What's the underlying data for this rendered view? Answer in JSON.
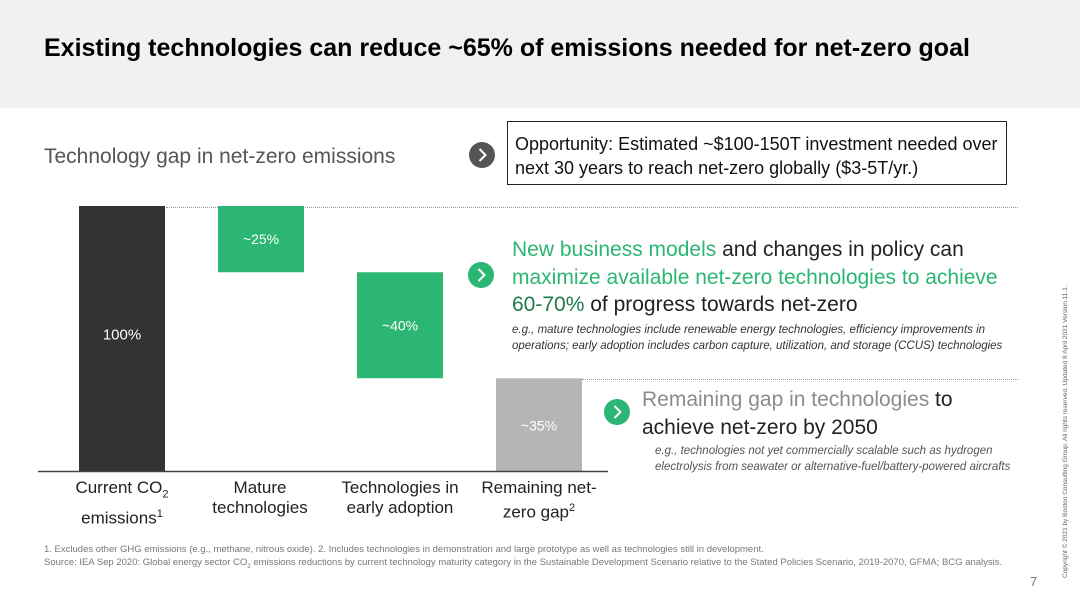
{
  "header": {
    "title": "Existing technologies can reduce ~65% of emissions needed for net-zero goal"
  },
  "subtitle": "Technology gap in net-zero emissions",
  "opportunity": {
    "label": "Opportunity",
    "text_a": ": Estimated ",
    "highlight": "~$100-150T",
    "text_b": " investment needed over next 30 years to reach net-zero globally ",
    "highlight2": "($3-5T/yr.)"
  },
  "message1": {
    "green_a": "New business models",
    "plain_a": " and changes in policy can ",
    "green_b": "maximize available net-zero technologies to achieve ",
    "green_bold": "60-70%",
    "plain_b": " of progress towards net-zero",
    "note": "e.g., mature technologies include renewable energy technologies, efficiency improvements in operations; early adoption includes carbon capture, utilization, and storage (CCUS) technologies"
  },
  "message2": {
    "grey": "Remaining gap in technologies",
    "plain": " to achieve net-zero by 2050",
    "note": "e.g., technologies not yet commercially scalable such as hydrogen electrolysis from seawater or alternative-fuel/battery-powered aircrafts"
  },
  "categories": {
    "c1_a": "Current CO",
    "c1_sub": "2",
    "c1_b": "emissions",
    "c1_sup": "1",
    "c2": "Mature technologies",
    "c3": "Technologies in early adoption",
    "c4": "Remaining net-zero gap",
    "c4_sup": "2"
  },
  "chart_data": {
    "type": "bar",
    "subtype": "waterfall",
    "categories": [
      "Current CO2 emissions",
      "Mature technologies",
      "Technologies in early adoption",
      "Remaining net-zero gap"
    ],
    "bars": [
      {
        "start": 0,
        "end": 100,
        "label": "100%",
        "color": "#333333"
      },
      {
        "start": 75,
        "end": 100,
        "label": "~25%",
        "color": "#2bb673"
      },
      {
        "start": 35,
        "end": 75,
        "label": "~40%",
        "color": "#2bb673"
      },
      {
        "start": 0,
        "end": 35,
        "label": "~35%",
        "color": "#b5b5b5"
      }
    ],
    "ylim": [
      0,
      100
    ]
  },
  "footnotes": {
    "line1": "1. Excludes other GHG emissions (e.g., methane, nitrous oxide). 2. Includes technologies in demonstration and large prototype as well as technologies still in development.",
    "line2a": "Source: IEA Sep 2020: Global energy sector CO",
    "line2sub": "2",
    "line2b": " emissions reductions by current technology maturity category in the Sustainable Development Scenario relative to the Stated Policies Scenario, 2019-2070, GFMA; BCG analysis."
  },
  "page_number": "7",
  "copyright": "Copyright © 2021 by Boston Consulting Group. All rights reserved. Updated 8 April 2021 Version 11.1.",
  "colors": {
    "green": "#2bb673",
    "dark": "#333333",
    "grey_bar": "#b5b5b5",
    "chevron": "#555555"
  }
}
